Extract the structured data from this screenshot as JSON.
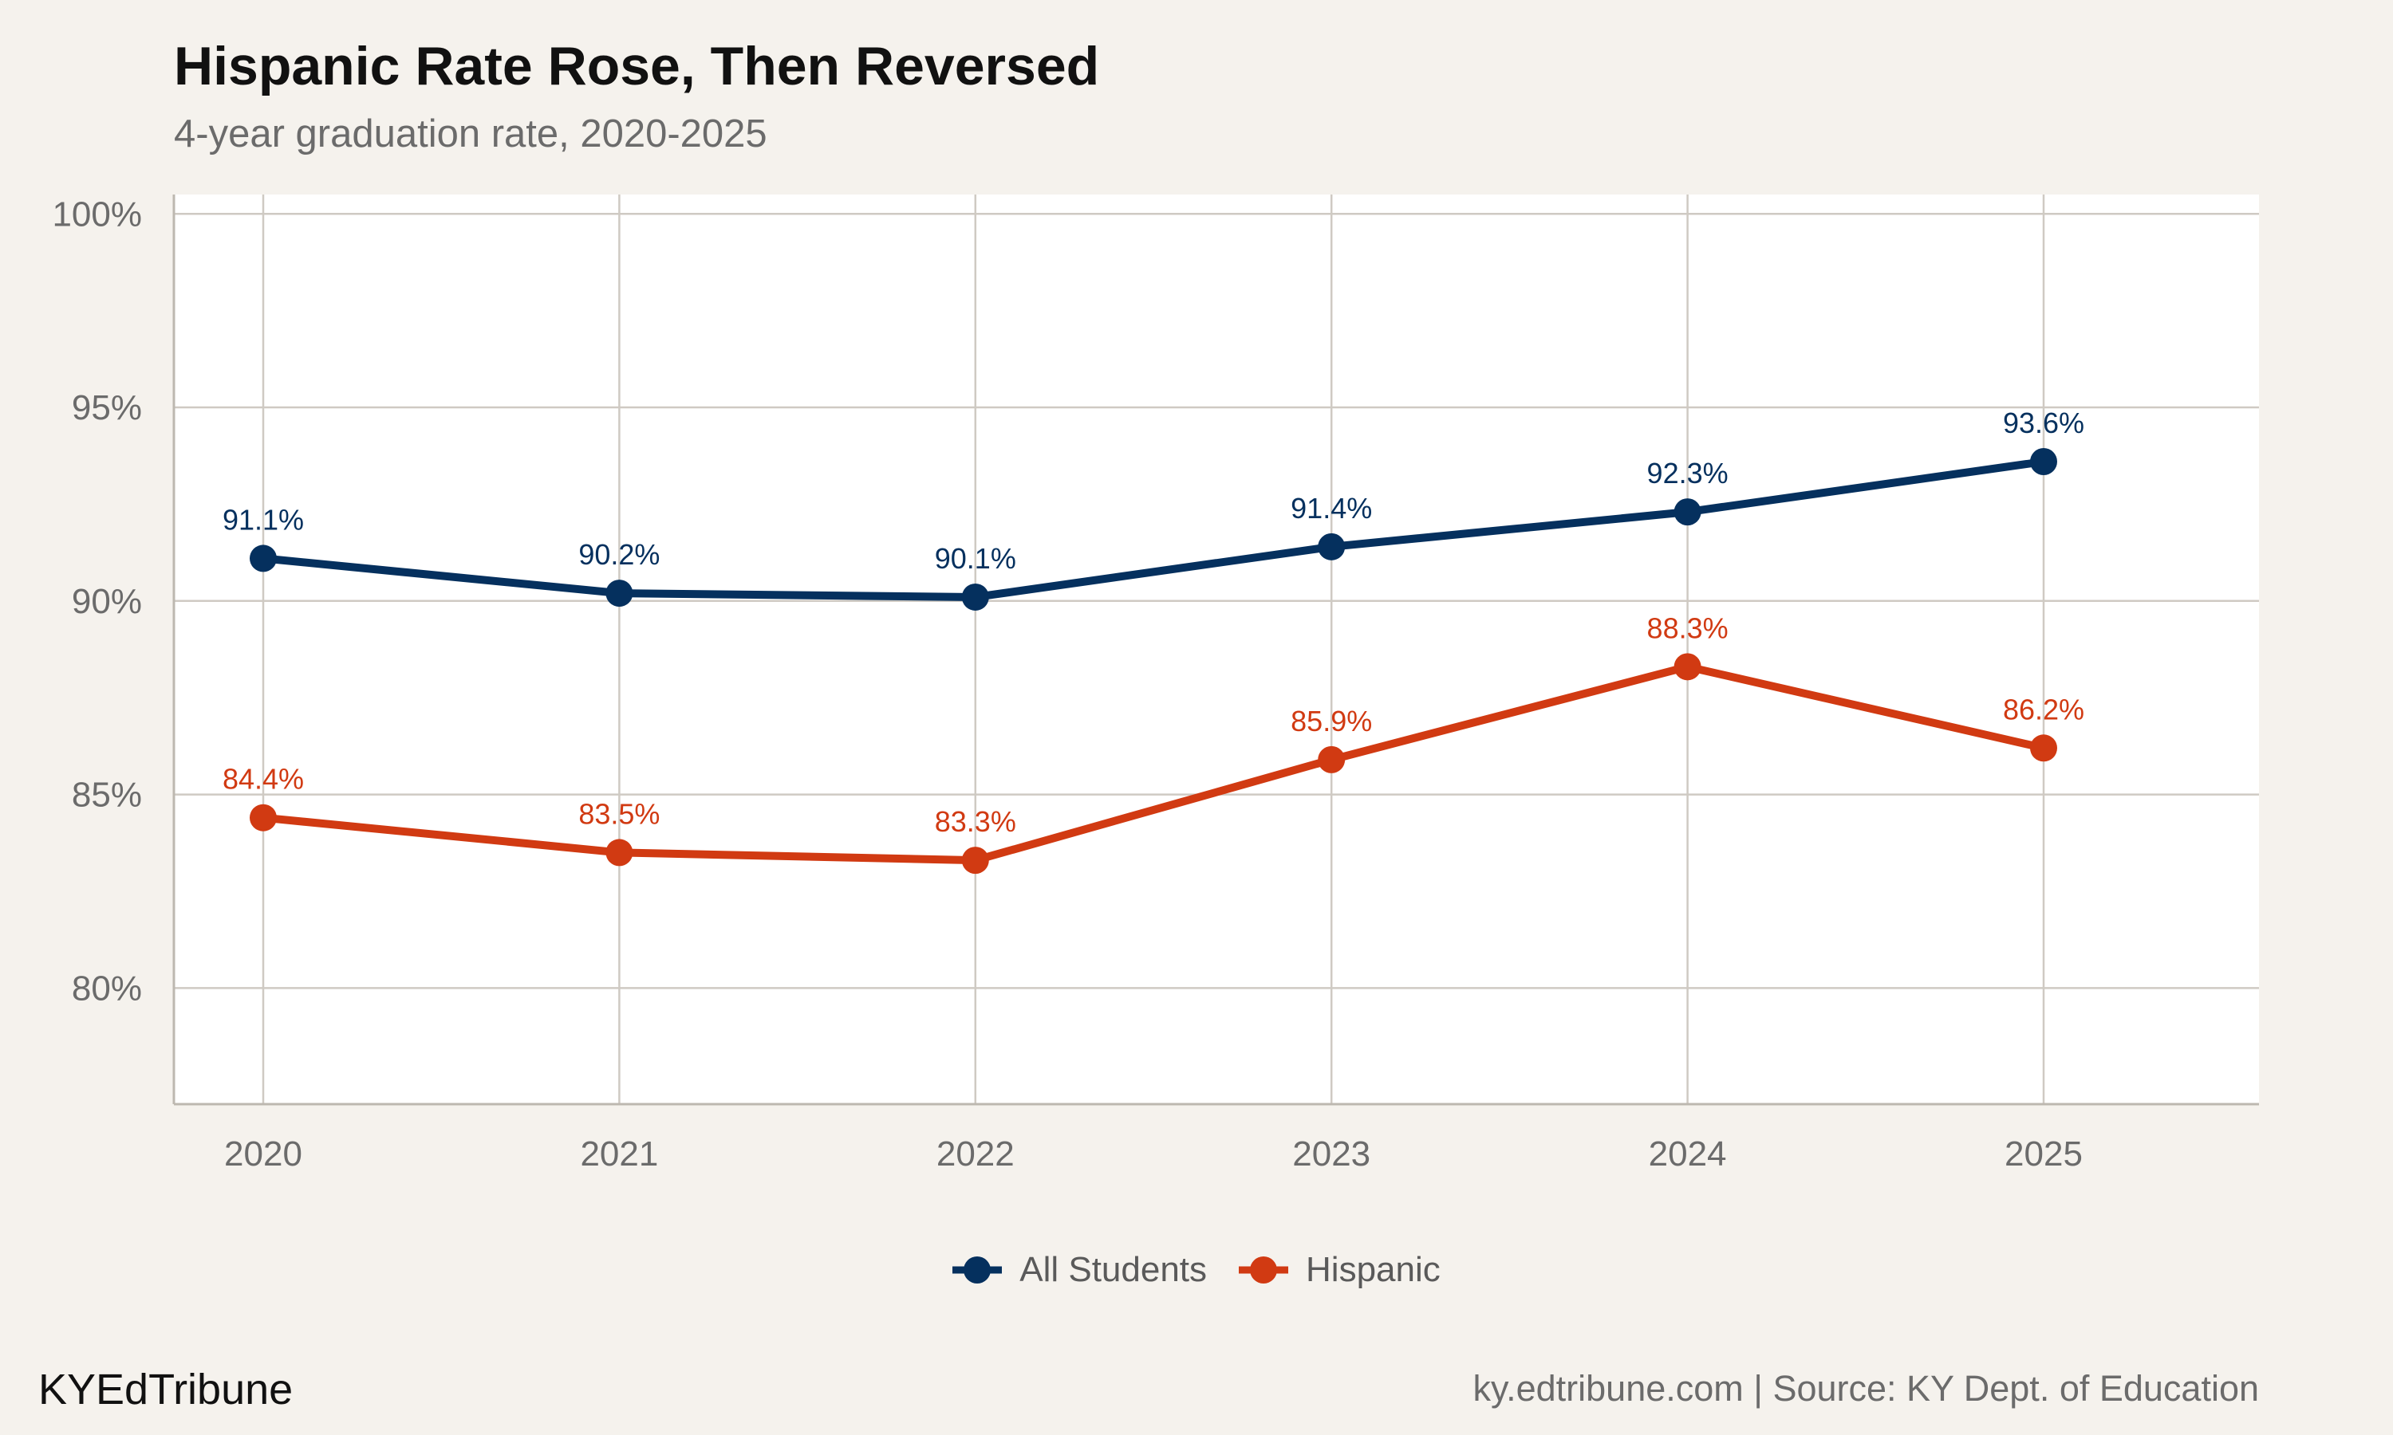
{
  "header": {
    "title": "Hispanic Rate Rose, Then Reversed",
    "subtitle": "4-year graduation rate, 2020-2025"
  },
  "footer": {
    "brand": "KYEdTribune",
    "source": "ky.edtribune.com | Source: KY Dept. of Education"
  },
  "colors": {
    "all_students": "#05305e",
    "hispanic": "#d13a12",
    "grid": "#cfcac3",
    "panel": "#ffffff"
  },
  "chart_data": {
    "type": "line",
    "title": "Hispanic Rate Rose, Then Reversed",
    "subtitle": "4-year graduation rate, 2020-2025",
    "xlabel": "",
    "ylabel": "",
    "x": [
      2020,
      2021,
      2022,
      2023,
      2024,
      2025
    ],
    "x_tick_labels": [
      "2020",
      "2021",
      "2022",
      "2023",
      "2024",
      "2025"
    ],
    "ylim": [
      77,
      100.5
    ],
    "y_ticks": [
      80,
      85,
      90,
      95,
      100
    ],
    "y_tick_labels": [
      "80%",
      "85%",
      "90%",
      "95%",
      "100%"
    ],
    "grid": true,
    "legend_position": "bottom",
    "series": [
      {
        "name": "All Students",
        "color": "#05305e",
        "values": [
          91.1,
          90.2,
          90.1,
          91.4,
          92.3,
          93.6
        ],
        "labels": [
          "91.1%",
          "90.2%",
          "90.1%",
          "91.4%",
          "92.3%",
          "93.6%"
        ]
      },
      {
        "name": "Hispanic",
        "color": "#d13a12",
        "values": [
          84.4,
          83.5,
          83.3,
          85.9,
          88.3,
          86.2
        ],
        "labels": [
          "84.4%",
          "83.5%",
          "83.3%",
          "85.9%",
          "88.3%",
          "86.2%"
        ]
      }
    ]
  }
}
